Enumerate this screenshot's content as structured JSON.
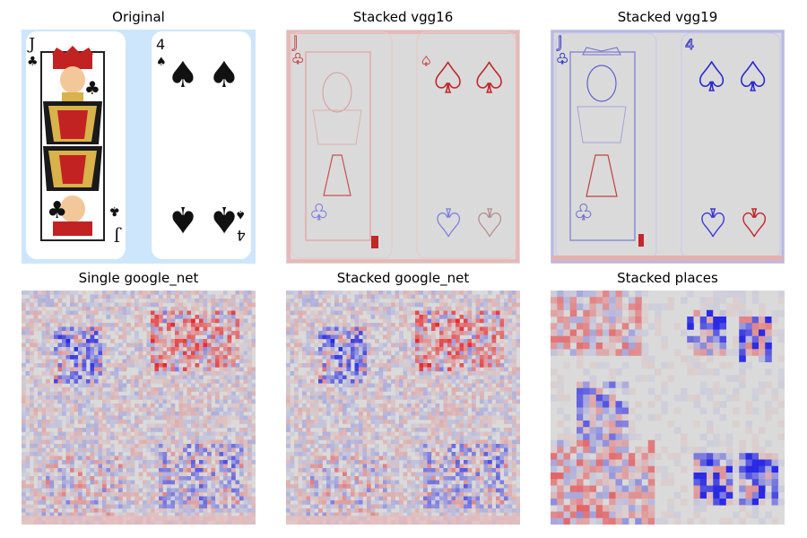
{
  "figure": {
    "panels": [
      {
        "title": "Original",
        "kind": "original"
      },
      {
        "title": "Stacked vgg16",
        "kind": "sharp-red"
      },
      {
        "title": "Stacked vgg19",
        "kind": "sharp-mixed"
      },
      {
        "title": "Single google_net",
        "kind": "noisy"
      },
      {
        "title": "Stacked google_net",
        "kind": "noisy"
      },
      {
        "title": "Stacked places",
        "kind": "blocky"
      }
    ],
    "colors": {
      "positive": "#c0282a",
      "negative": "#2a2ad0",
      "neutral": "#dadada",
      "card_background": "#cde6fb"
    }
  }
}
